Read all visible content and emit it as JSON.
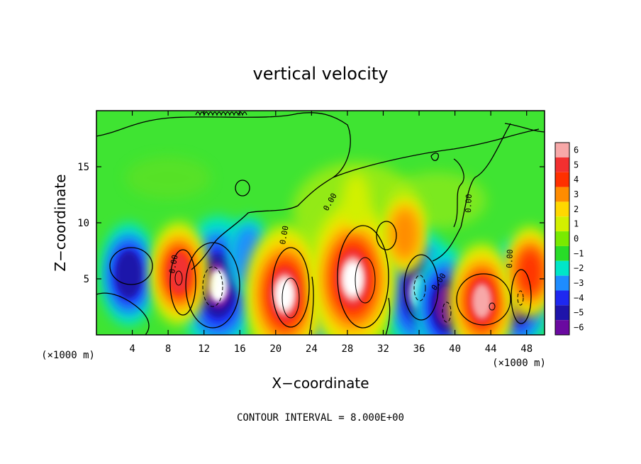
{
  "chart_data": {
    "type": "heatmap",
    "title": "vertical velocity",
    "xlabel": "X−coordinate",
    "ylabel": "Z−coordinate",
    "xlim": [
      0,
      50
    ],
    "ylim": [
      0,
      20
    ],
    "x_unit_left": "(×1000 m)",
    "x_unit_right": "(×1000 m)",
    "x_ticks": [
      4,
      8,
      12,
      16,
      20,
      24,
      28,
      32,
      36,
      40,
      44,
      48
    ],
    "y_ticks": [
      5,
      10,
      15
    ],
    "contour_interval": "CONTOUR INTERVAL = 8.000E+00",
    "contour_labels": [
      "0.00",
      "0.00",
      "0.00",
      "0.00",
      "0.00",
      "0.00"
    ],
    "colorbar": {
      "ticks": [
        6,
        5,
        4,
        3,
        2,
        1,
        0,
        -1,
        -2,
        -3,
        -4,
        -5,
        -6
      ],
      "tick_labels": [
        "6",
        "5",
        "4",
        "3",
        "2",
        "1",
        "0",
        "−1",
        "−2",
        "−3",
        "−4",
        "−5",
        "−6"
      ],
      "colors": [
        "#f7a8a8",
        "#f23030",
        "#ff3000",
        "#ff8c00",
        "#ffd800",
        "#d2f000",
        "#79ea00",
        "#28dc28",
        "#00e6c8",
        "#1e8cff",
        "#1e28f0",
        "#1e14aa",
        "#6a0aa0"
      ]
    },
    "updrafts": [
      {
        "x": 9.2,
        "z": 5.5,
        "w": 5
      },
      {
        "x": 21.0,
        "z": 3.6,
        "w": 8
      },
      {
        "x": 28.6,
        "z": 5.0,
        "w": 9
      },
      {
        "x": 43.0,
        "z": 3.0,
        "w": 6
      },
      {
        "x": 48.4,
        "z": 5.6,
        "w": 4
      },
      {
        "x": 34.4,
        "z": 9.0,
        "w": 3
      },
      {
        "x": 29.0,
        "z": 12.0,
        "w": 1
      }
    ],
    "downdrafts": [
      {
        "x": 13.6,
        "z": 4.4,
        "w": -8
      },
      {
        "x": 36.0,
        "z": 3.8,
        "w": -7
      },
      {
        "x": 39.0,
        "z": 2.6,
        "w": -6
      },
      {
        "x": 47.0,
        "z": 3.4,
        "w": -6
      },
      {
        "x": 3.6,
        "z": 5.4,
        "w": -5
      },
      {
        "x": 24.0,
        "z": 1.8,
        "w": -3
      },
      {
        "x": 17.0,
        "z": 7.0,
        "w": -3
      }
    ]
  }
}
